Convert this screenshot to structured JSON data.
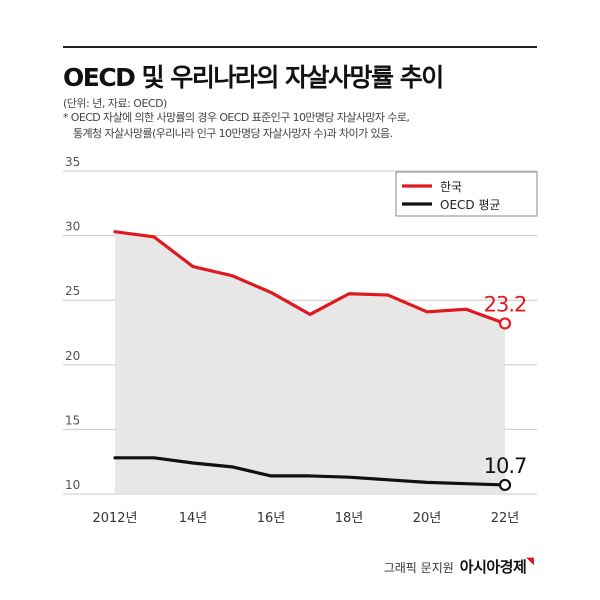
{
  "title": "OECD 및 우리나라의 자살사망률 추이",
  "unit_note": "(단위: 년, 자료: OECD)",
  "footnote_line1": "* OECD 자살에 의한 사망률의 경우 OECD 표준인구 10만명당 자살사망자 수로,",
  "footnote_line2": "통계청 자살사망률(우리나라 인구 10만명당 자살사망자 수)과 차이가 있음.",
  "credit_text": "그래픽 문지원",
  "credit_brand": "아시아경제",
  "colors": {
    "korea": "#e0191f",
    "oecd": "#111111",
    "area": "#e7e7e7",
    "grid": "#c8c8c8"
  },
  "chart_data": {
    "type": "line",
    "x": [
      2012,
      2013,
      2014,
      2015,
      2016,
      2017,
      2018,
      2019,
      2020,
      2021,
      2022
    ],
    "x_tick_values": [
      2012,
      2014,
      2016,
      2018,
      2020,
      2022
    ],
    "x_tick_labels": [
      "2012년",
      "14년",
      "16년",
      "18년",
      "20년",
      "22년"
    ],
    "ylim": [
      10,
      35
    ],
    "y_ticks": [
      10,
      15,
      20,
      25,
      30,
      35
    ],
    "grid": true,
    "legend_position": "top-right",
    "series": [
      {
        "name": "한국",
        "color": "#e0191f",
        "values": [
          30.3,
          29.9,
          27.6,
          26.9,
          25.6,
          23.9,
          25.5,
          25.4,
          24.1,
          24.3,
          23.2
        ],
        "end_label": "23.2",
        "fill_area": true
      },
      {
        "name": "OECD 평균",
        "color": "#111111",
        "values": [
          12.8,
          12.8,
          12.4,
          12.1,
          11.4,
          11.4,
          11.3,
          11.1,
          10.9,
          10.8,
          10.7
        ],
        "end_label": "10.7"
      }
    ]
  }
}
